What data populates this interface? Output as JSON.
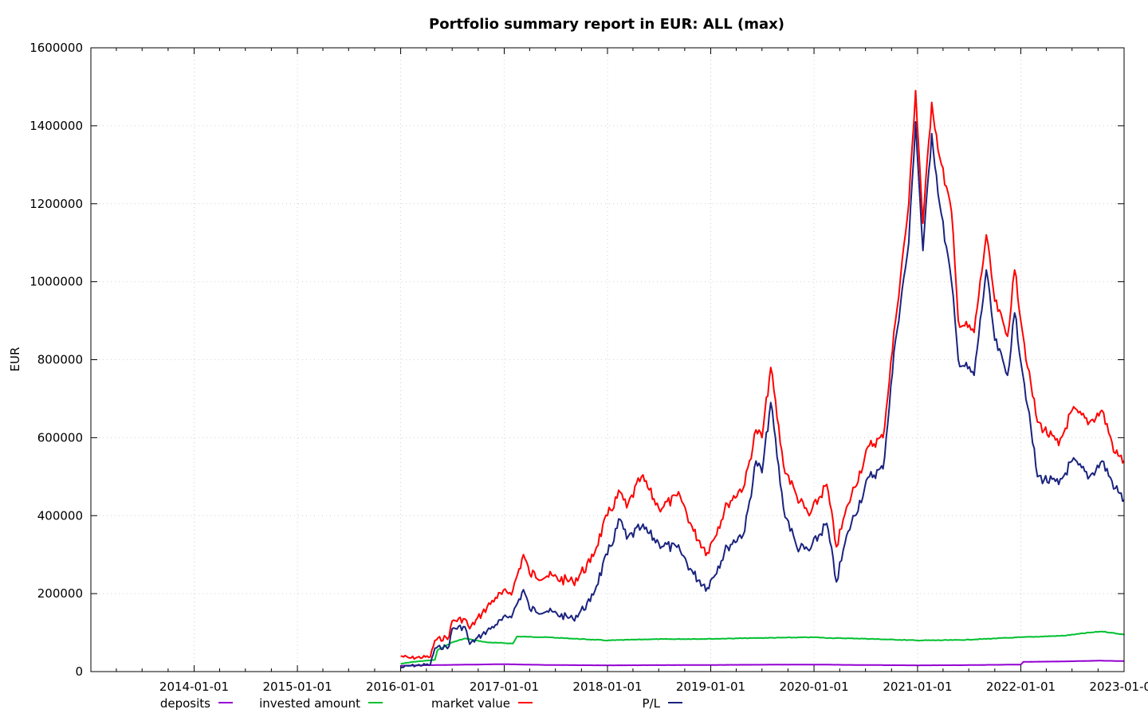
{
  "chart_data": {
    "type": "line",
    "title": "Portfolio summary report in EUR: ALL (max)",
    "xlabel": "",
    "ylabel": "EUR",
    "xlim": [
      "2013-01-01",
      "2023-01-01"
    ],
    "ylim": [
      0,
      1600000
    ],
    "y_ticks": [
      0,
      200000,
      400000,
      600000,
      800000,
      1000000,
      1200000,
      1400000,
      1600000
    ],
    "y_tick_labels": [
      "0",
      "200000",
      "400000",
      "600000",
      "800000",
      "1000000",
      "1200000",
      "1400000",
      "1600000"
    ],
    "x_ticks": [
      "2014-01-01",
      "2015-01-01",
      "2016-01-01",
      "2017-01-01",
      "2018-01-01",
      "2019-01-01",
      "2020-01-01",
      "2021-01-01",
      "2022-01-01",
      "2023-01-01"
    ],
    "grid": true,
    "legend_position": "bottom",
    "series": [
      {
        "name": "deposits",
        "color": "#9400d3",
        "points": [
          [
            "2016-01-01",
            15000
          ],
          [
            "2016-03-01",
            16000
          ],
          [
            "2016-06-01",
            17000
          ],
          [
            "2017-01-01",
            19000
          ],
          [
            "2017-06-01",
            17000
          ],
          [
            "2018-01-01",
            16000
          ],
          [
            "2018-06-01",
            16500
          ],
          [
            "2019-01-01",
            17000
          ],
          [
            "2019-06-01",
            17500
          ],
          [
            "2020-01-01",
            18000
          ],
          [
            "2020-06-01",
            17000
          ],
          [
            "2021-01-01",
            16000
          ],
          [
            "2021-06-01",
            16500
          ],
          [
            "2022-01-01",
            18000
          ],
          [
            "2022-01-10",
            25000
          ],
          [
            "2022-06-01",
            26000
          ],
          [
            "2022-10-01",
            28000
          ],
          [
            "2023-01-01",
            27000
          ]
        ]
      },
      {
        "name": "invested amount",
        "color": "#00c030",
        "points": [
          [
            "2016-01-01",
            20000
          ],
          [
            "2016-02-15",
            25000
          ],
          [
            "2016-05-01",
            30000
          ],
          [
            "2016-05-10",
            55000
          ],
          [
            "2016-07-01",
            75000
          ],
          [
            "2016-08-15",
            85000
          ],
          [
            "2016-11-01",
            75000
          ],
          [
            "2017-02-01",
            72000
          ],
          [
            "2017-02-15",
            90000
          ],
          [
            "2017-06-01",
            88000
          ],
          [
            "2018-01-01",
            80000
          ],
          [
            "2018-06-01",
            83000
          ],
          [
            "2019-01-01",
            84000
          ],
          [
            "2019-06-01",
            86000
          ],
          [
            "2020-01-01",
            88000
          ],
          [
            "2020-03-01",
            86000
          ],
          [
            "2020-06-01",
            85000
          ],
          [
            "2021-01-01",
            80000
          ],
          [
            "2021-06-01",
            81000
          ],
          [
            "2022-01-01",
            88000
          ],
          [
            "2022-06-01",
            92000
          ],
          [
            "2022-09-01",
            100000
          ],
          [
            "2022-10-15",
            103000
          ],
          [
            "2023-01-01",
            95000
          ]
        ]
      },
      {
        "name": "market value",
        "color": "#ff0000",
        "points": [
          [
            "2016-01-01",
            40000
          ],
          [
            "2016-02-01",
            35000
          ],
          [
            "2016-04-15",
            38000
          ],
          [
            "2016-05-01",
            80000
          ],
          [
            "2016-06-20",
            90000
          ],
          [
            "2016-07-01",
            130000
          ],
          [
            "2016-08-15",
            135000
          ],
          [
            "2016-09-01",
            110000
          ],
          [
            "2016-10-15",
            150000
          ],
          [
            "2016-12-01",
            190000
          ],
          [
            "2017-02-01",
            210000
          ],
          [
            "2017-03-10",
            300000
          ],
          [
            "2017-04-01",
            250000
          ],
          [
            "2017-06-01",
            245000
          ],
          [
            "2017-09-01",
            230000
          ],
          [
            "2017-11-01",
            280000
          ],
          [
            "2018-01-01",
            400000
          ],
          [
            "2018-02-15",
            460000
          ],
          [
            "2018-03-10",
            420000
          ],
          [
            "2018-05-01",
            500000
          ],
          [
            "2018-07-01",
            420000
          ],
          [
            "2018-09-15",
            450000
          ],
          [
            "2018-11-01",
            360000
          ],
          [
            "2018-12-20",
            305000
          ],
          [
            "2019-03-01",
            430000
          ],
          [
            "2019-05-01",
            480000
          ],
          [
            "2019-06-10",
            620000
          ],
          [
            "2019-07-01",
            600000
          ],
          [
            "2019-08-01",
            780000
          ],
          [
            "2019-09-15",
            530000
          ],
          [
            "2019-11-01",
            450000
          ],
          [
            "2019-12-15",
            400000
          ],
          [
            "2020-02-15",
            480000
          ],
          [
            "2020-03-20",
            320000
          ],
          [
            "2020-05-01",
            430000
          ],
          [
            "2020-07-15",
            580000
          ],
          [
            "2020-09-01",
            600000
          ],
          [
            "2020-10-15",
            900000
          ],
          [
            "2020-12-01",
            1200000
          ],
          [
            "2020-12-25",
            1490000
          ],
          [
            "2021-01-20",
            1150000
          ],
          [
            "2021-02-20",
            1460000
          ],
          [
            "2021-03-20",
            1320000
          ],
          [
            "2021-05-01",
            1180000
          ],
          [
            "2021-05-25",
            900000
          ],
          [
            "2021-07-20",
            870000
          ],
          [
            "2021-09-01",
            1120000
          ],
          [
            "2021-10-01",
            950000
          ],
          [
            "2021-11-15",
            860000
          ],
          [
            "2021-12-10",
            1030000
          ],
          [
            "2022-01-25",
            780000
          ],
          [
            "2022-03-01",
            640000
          ],
          [
            "2022-05-15",
            580000
          ],
          [
            "2022-07-01",
            670000
          ],
          [
            "2022-09-01",
            640000
          ],
          [
            "2022-10-15",
            670000
          ],
          [
            "2022-12-01",
            560000
          ],
          [
            "2023-01-01",
            540000
          ]
        ]
      },
      {
        "name": "P/L",
        "color": "#1a237e",
        "points": [
          [
            "2016-01-01",
            10000
          ],
          [
            "2016-02-01",
            15000
          ],
          [
            "2016-04-15",
            18000
          ],
          [
            "2016-05-01",
            60000
          ],
          [
            "2016-06-20",
            65000
          ],
          [
            "2016-07-01",
            110000
          ],
          [
            "2016-08-15",
            115000
          ],
          [
            "2016-09-01",
            70000
          ],
          [
            "2016-10-15",
            95000
          ],
          [
            "2016-12-01",
            120000
          ],
          [
            "2017-02-01",
            150000
          ],
          [
            "2017-03-10",
            210000
          ],
          [
            "2017-04-01",
            160000
          ],
          [
            "2017-06-01",
            155000
          ],
          [
            "2017-09-01",
            135000
          ],
          [
            "2017-11-01",
            180000
          ],
          [
            "2018-01-01",
            300000
          ],
          [
            "2018-02-15",
            390000
          ],
          [
            "2018-03-10",
            340000
          ],
          [
            "2018-05-01",
            370000
          ],
          [
            "2018-07-01",
            330000
          ],
          [
            "2018-09-15",
            310000
          ],
          [
            "2018-11-01",
            250000
          ],
          [
            "2018-12-20",
            215000
          ],
          [
            "2019-03-01",
            320000
          ],
          [
            "2019-05-01",
            360000
          ],
          [
            "2019-06-10",
            540000
          ],
          [
            "2019-07-01",
            510000
          ],
          [
            "2019-08-01",
            690000
          ],
          [
            "2019-09-15",
            420000
          ],
          [
            "2019-11-01",
            320000
          ],
          [
            "2019-12-15",
            310000
          ],
          [
            "2020-02-15",
            380000
          ],
          [
            "2020-03-20",
            230000
          ],
          [
            "2020-05-01",
            360000
          ],
          [
            "2020-07-15",
            500000
          ],
          [
            "2020-09-01",
            520000
          ],
          [
            "2020-10-15",
            850000
          ],
          [
            "2020-12-01",
            1100000
          ],
          [
            "2020-12-25",
            1410000
          ],
          [
            "2021-01-20",
            1080000
          ],
          [
            "2021-02-20",
            1380000
          ],
          [
            "2021-03-20",
            1200000
          ],
          [
            "2021-05-01",
            1000000
          ],
          [
            "2021-05-25",
            800000
          ],
          [
            "2021-07-20",
            760000
          ],
          [
            "2021-09-01",
            1030000
          ],
          [
            "2021-10-01",
            850000
          ],
          [
            "2021-11-15",
            760000
          ],
          [
            "2021-12-10",
            920000
          ],
          [
            "2022-01-25",
            680000
          ],
          [
            "2022-03-01",
            500000
          ],
          [
            "2022-05-15",
            480000
          ],
          [
            "2022-07-01",
            540000
          ],
          [
            "2022-09-01",
            500000
          ],
          [
            "2022-10-15",
            540000
          ],
          [
            "2022-12-01",
            470000
          ],
          [
            "2023-01-01",
            440000
          ]
        ]
      }
    ]
  }
}
